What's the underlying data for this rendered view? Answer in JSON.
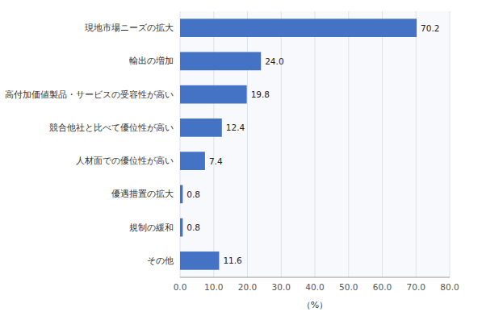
{
  "chart_data": {
    "type": "bar",
    "orientation": "horizontal",
    "categories": [
      "現地市場ニーズの拡大",
      "輸出の増加",
      "高付加価値製品・サービスの受容性が高い",
      "競合他社と比べて優位性が高い",
      "人材面での優位性が高い",
      "優遇措置の拡大",
      "規制の緩和",
      "その他"
    ],
    "values": [
      70.2,
      24.0,
      19.8,
      12.4,
      7.4,
      0.8,
      0.8,
      11.6
    ],
    "value_labels": [
      "70.2",
      "24.0",
      "19.8",
      "12.4",
      "7.4",
      "0.8",
      "0.8",
      "11.6"
    ],
    "data_labels": true,
    "color": "#4472C4",
    "xlim": [
      0,
      80
    ],
    "xticks": [
      {
        "value": 0,
        "label": "0.0"
      },
      {
        "value": 10,
        "label": "10.0"
      },
      {
        "value": 20,
        "label": "20.0"
      },
      {
        "value": 30,
        "label": "30.0"
      },
      {
        "value": 40,
        "label": "40.0"
      },
      {
        "value": 50,
        "label": "50.0"
      },
      {
        "value": 60,
        "label": "60.0"
      },
      {
        "value": 70,
        "label": "70.0"
      },
      {
        "value": 80,
        "label": "80.0"
      }
    ],
    "xlabel": "（%）",
    "grid": true
  }
}
